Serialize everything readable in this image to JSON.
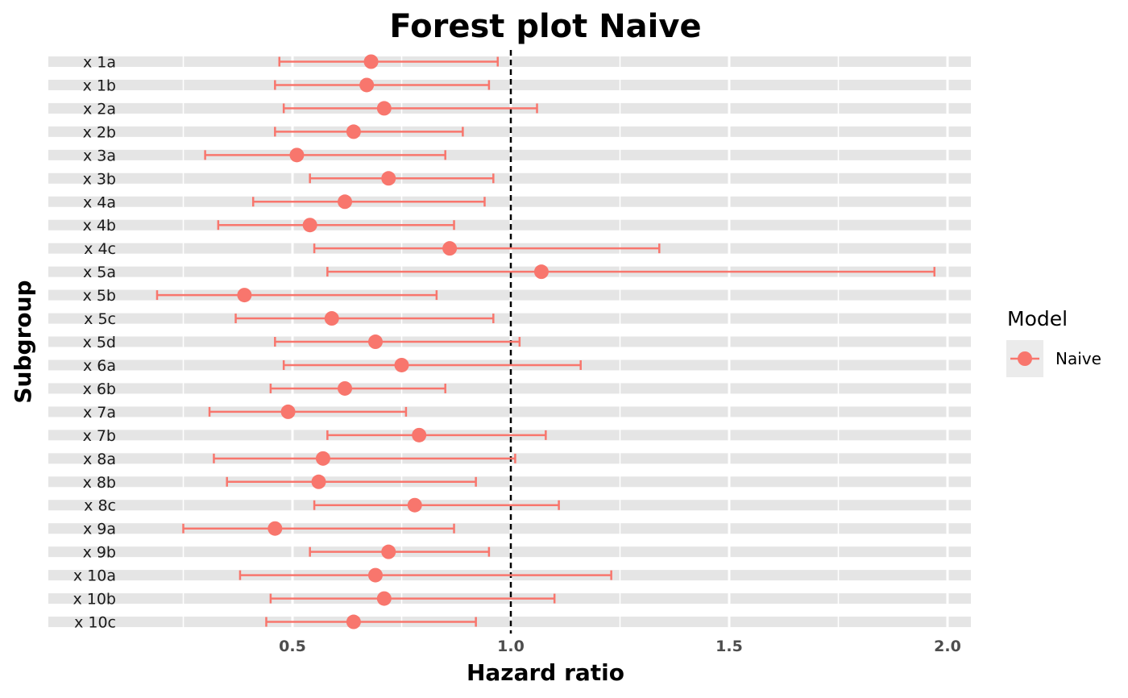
{
  "chart_data": {
    "type": "forest",
    "title": "Forest plot Naive",
    "xlabel": "Hazard ratio",
    "ylabel": "Subgroup",
    "xlim": [
      0.0,
      2.05
    ],
    "xticks": [
      0.5,
      1.0,
      1.5,
      2.0
    ],
    "xtick_labels": [
      "0.5",
      "1.0",
      "1.5",
      "2.0"
    ],
    "reference_line": 1.0,
    "grid": true,
    "legend_position": "right",
    "legend_title": "Model",
    "series": [
      {
        "name": "Naive",
        "color": "#F8766D",
        "rows": [
          {
            "label": "x 1a",
            "estimate": 0.68,
            "lower": 0.47,
            "upper": 0.97
          },
          {
            "label": "x 1b",
            "estimate": 0.67,
            "lower": 0.46,
            "upper": 0.95
          },
          {
            "label": "x 2a",
            "estimate": 0.71,
            "lower": 0.48,
            "upper": 1.06
          },
          {
            "label": "x 2b",
            "estimate": 0.64,
            "lower": 0.46,
            "upper": 0.89
          },
          {
            "label": "x 3a",
            "estimate": 0.51,
            "lower": 0.3,
            "upper": 0.85
          },
          {
            "label": "x 3b",
            "estimate": 0.72,
            "lower": 0.54,
            "upper": 0.96
          },
          {
            "label": "x 4a",
            "estimate": 0.62,
            "lower": 0.41,
            "upper": 0.94
          },
          {
            "label": "x 4b",
            "estimate": 0.54,
            "lower": 0.33,
            "upper": 0.87
          },
          {
            "label": "x 4c",
            "estimate": 0.86,
            "lower": 0.55,
            "upper": 1.34
          },
          {
            "label": "x 5a",
            "estimate": 1.07,
            "lower": 0.58,
            "upper": 1.97
          },
          {
            "label": "x 5b",
            "estimate": 0.39,
            "lower": 0.19,
            "upper": 0.83
          },
          {
            "label": "x 5c",
            "estimate": 0.59,
            "lower": 0.37,
            "upper": 0.96
          },
          {
            "label": "x 5d",
            "estimate": 0.69,
            "lower": 0.46,
            "upper": 1.02
          },
          {
            "label": "x 6a",
            "estimate": 0.75,
            "lower": 0.48,
            "upper": 1.16
          },
          {
            "label": "x 6b",
            "estimate": 0.62,
            "lower": 0.45,
            "upper": 0.85
          },
          {
            "label": "x 7a",
            "estimate": 0.49,
            "lower": 0.31,
            "upper": 0.76
          },
          {
            "label": "x 7b",
            "estimate": 0.79,
            "lower": 0.58,
            "upper": 1.08
          },
          {
            "label": "x 8a",
            "estimate": 0.57,
            "lower": 0.32,
            "upper": 1.01
          },
          {
            "label": "x 8b",
            "estimate": 0.56,
            "lower": 0.35,
            "upper": 0.92
          },
          {
            "label": "x 8c",
            "estimate": 0.78,
            "lower": 0.55,
            "upper": 1.11
          },
          {
            "label": "x 9a",
            "estimate": 0.46,
            "lower": 0.25,
            "upper": 0.87
          },
          {
            "label": "x 9b",
            "estimate": 0.72,
            "lower": 0.54,
            "upper": 0.95
          },
          {
            "label": "x 10a",
            "estimate": 0.69,
            "lower": 0.38,
            "upper": 1.23
          },
          {
            "label": "x 10b",
            "estimate": 0.71,
            "lower": 0.45,
            "upper": 1.1
          },
          {
            "label": "x 10c",
            "estimate": 0.64,
            "lower": 0.44,
            "upper": 0.92
          }
        ]
      }
    ]
  }
}
